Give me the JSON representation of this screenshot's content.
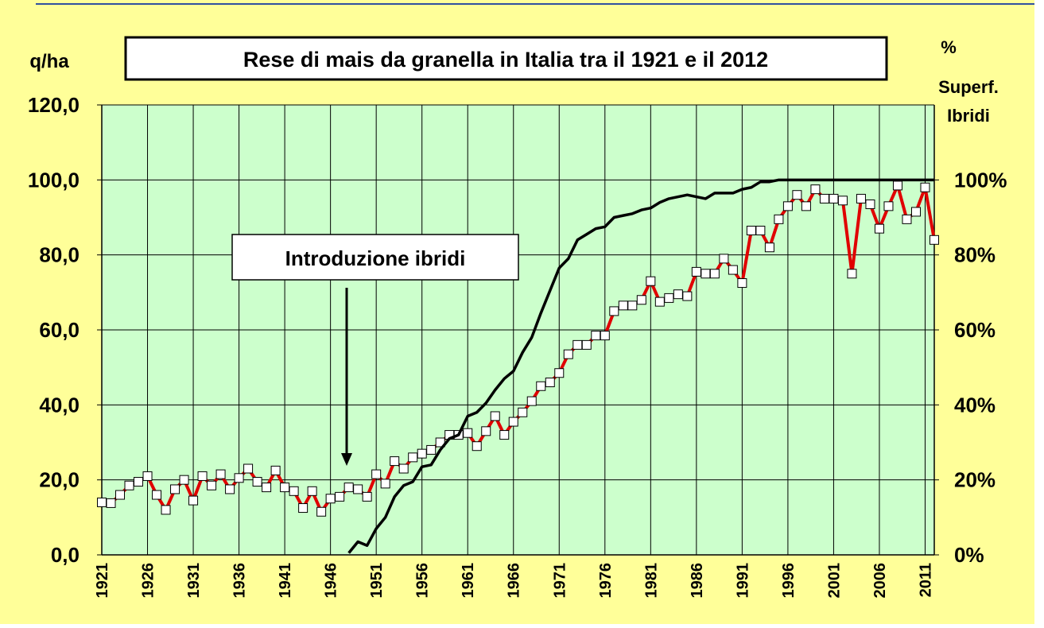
{
  "chart_data": {
    "type": "line",
    "title": "Rese di mais da granella in Italia tra il 1921 e il 2012",
    "y_label": "q/ha",
    "y2_label": [
      "%",
      "Superf.",
      "Ibridi"
    ],
    "annotation": "Introduzione ibridi",
    "x": [
      1921,
      1922,
      1923,
      1924,
      1925,
      1926,
      1927,
      1928,
      1929,
      1930,
      1931,
      1932,
      1933,
      1934,
      1935,
      1936,
      1937,
      1938,
      1939,
      1940,
      1941,
      1942,
      1943,
      1944,
      1945,
      1946,
      1947,
      1948,
      1949,
      1950,
      1951,
      1952,
      1953,
      1954,
      1955,
      1956,
      1957,
      1958,
      1959,
      1960,
      1961,
      1962,
      1963,
      1964,
      1965,
      1966,
      1967,
      1968,
      1969,
      1970,
      1971,
      1972,
      1973,
      1974,
      1975,
      1976,
      1977,
      1978,
      1979,
      1980,
      1981,
      1982,
      1983,
      1984,
      1985,
      1986,
      1987,
      1988,
      1989,
      1990,
      1991,
      1992,
      1993,
      1994,
      1995,
      1996,
      1997,
      1998,
      1999,
      2000,
      2001,
      2002,
      2003,
      2004,
      2005,
      2006,
      2007,
      2008,
      2009,
      2010,
      2011,
      2012
    ],
    "xlim": [
      1921,
      2012
    ],
    "xticks": [
      1921,
      1926,
      1931,
      1936,
      1941,
      1946,
      1951,
      1956,
      1961,
      1966,
      1971,
      1976,
      1981,
      1986,
      1991,
      1996,
      2001,
      2006,
      2011
    ],
    "ylim": [
      0,
      120
    ],
    "yticks": [
      {
        "value": 0,
        "label": "0,0"
      },
      {
        "value": 20,
        "label": "20,0"
      },
      {
        "value": 40,
        "label": "40,0"
      },
      {
        "value": 60,
        "label": "60,0"
      },
      {
        "value": 80,
        "label": "80,0"
      },
      {
        "value": 100,
        "label": "100,0"
      },
      {
        "value": 120,
        "label": "120,0"
      }
    ],
    "y2lim": [
      0,
      120
    ],
    "y2ticks": [
      {
        "value": 0,
        "label": "0%"
      },
      {
        "value": 20,
        "label": "20%"
      },
      {
        "value": 40,
        "label": "40%"
      },
      {
        "value": 60,
        "label": "60%"
      },
      {
        "value": 80,
        "label": "80%"
      },
      {
        "value": 100,
        "label": "100%"
      }
    ],
    "grid": true,
    "series": [
      {
        "color": "#e00000",
        "marker": "square",
        "values": [
          14,
          13.8,
          16,
          18.5,
          19.5,
          21,
          16,
          12,
          17.5,
          20,
          14.5,
          21,
          18.5,
          21.5,
          17.5,
          20.5,
          23,
          19.5,
          18,
          22.5,
          18,
          17,
          12.5,
          17,
          11.5,
          15,
          15.5,
          18,
          17.5,
          15.5,
          21.5,
          19,
          25,
          23,
          26,
          27,
          28,
          30,
          32,
          32,
          32.5,
          29,
          33,
          37,
          32,
          35.5,
          38,
          41,
          45,
          46,
          48.5,
          53.5,
          56,
          56,
          58.5,
          58.5,
          65,
          66.5,
          66.5,
          68,
          73,
          67.5,
          68.5,
          69.5,
          69,
          75.5,
          75,
          75,
          79,
          76,
          72.5,
          86.5,
          86.5,
          82,
          89.5,
          93,
          96,
          93,
          97.5,
          95,
          95,
          94.5,
          75,
          95,
          93.5,
          87,
          93,
          98.5,
          89.5,
          91.5,
          98,
          84
        ]
      },
      {
        "color": "#000000",
        "axis": "y2",
        "values": [
          null,
          null,
          null,
          null,
          null,
          null,
          null,
          null,
          null,
          null,
          null,
          null,
          null,
          null,
          null,
          null,
          null,
          null,
          null,
          null,
          null,
          null,
          null,
          null,
          null,
          null,
          null,
          0.5,
          3.5,
          2.5,
          7,
          10,
          15.5,
          18.5,
          19.5,
          23.5,
          24,
          28,
          31,
          32,
          37,
          38,
          40.5,
          44,
          47,
          49,
          54,
          58,
          64.5,
          70.5,
          76.5,
          79,
          84,
          85.5,
          87,
          87.5,
          90,
          90.5,
          91,
          92,
          92.5,
          94,
          95,
          95.5,
          96,
          95.5,
          95,
          96.5,
          96.5,
          96.5,
          97.5,
          98,
          99.5,
          99.5,
          100,
          100,
          100,
          100,
          100,
          100,
          100,
          100,
          100,
          100,
          100,
          100,
          100,
          100,
          100,
          100,
          100,
          100
        ]
      }
    ]
  }
}
